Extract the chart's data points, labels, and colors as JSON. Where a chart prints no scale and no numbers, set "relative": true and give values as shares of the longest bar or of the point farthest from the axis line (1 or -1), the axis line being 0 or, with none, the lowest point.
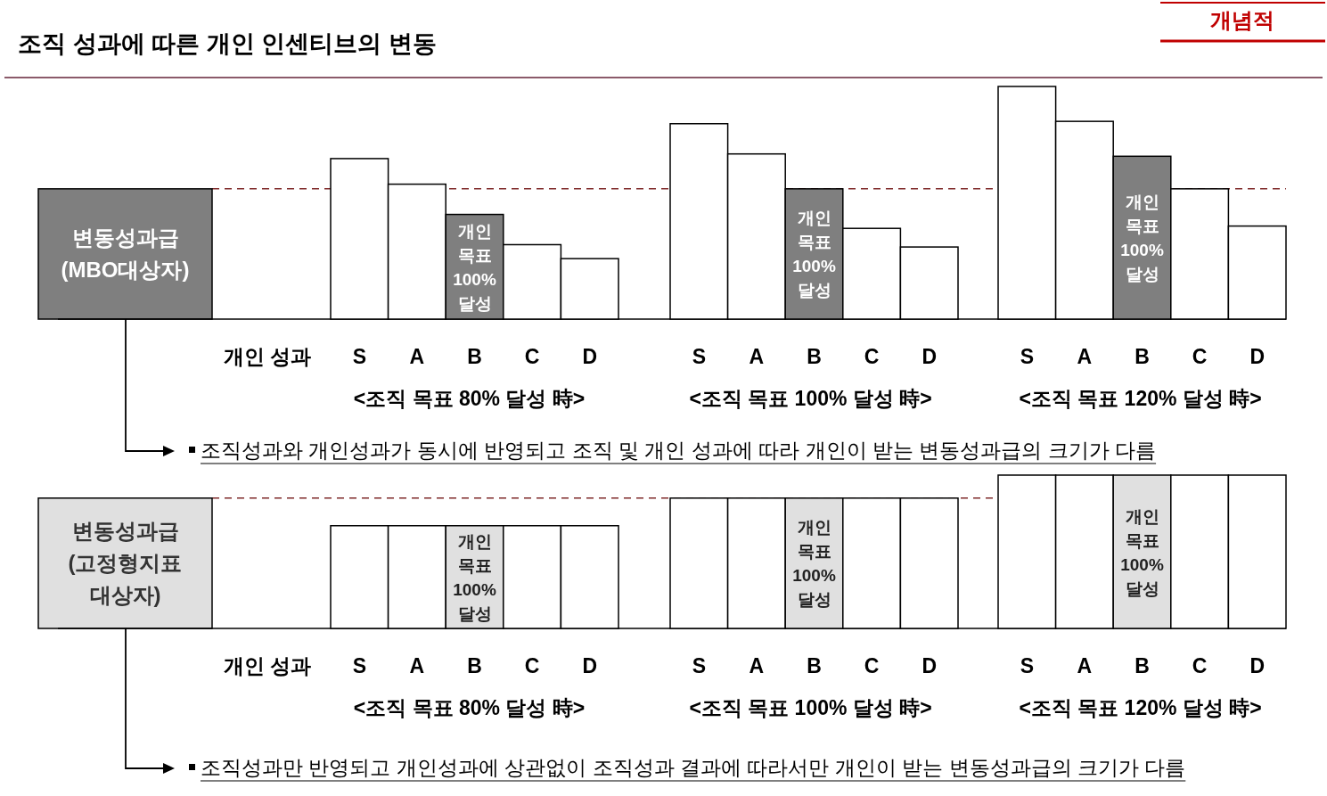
{
  "chart_data": [
    {
      "type": "bar",
      "relative": true,
      "title": "조직 성과에 따른 개인 인센티브의 변동",
      "tick_labels": "x",
      "categories": [
        "S",
        "A",
        "B",
        "C",
        "D",
        "S",
        "A",
        "B",
        "C",
        "D",
        "S",
        "A",
        "B",
        "C",
        "D"
      ],
      "values": [
        0.69,
        0.58,
        0.45,
        0.32,
        0.26,
        0.84,
        0.71,
        0.56,
        0.39,
        0.31,
        1,
        0.85,
        0.7,
        0.56,
        0.4
      ],
      "colors": [
        "#ffffff",
        "#ffffff",
        "#7f7f7f",
        "#ffffff",
        "#ffffff",
        "#ffffff",
        "#ffffff",
        "#7f7f7f",
        "#ffffff",
        "#ffffff",
        "#ffffff",
        "#ffffff",
        "#7f7f7f",
        "#ffffff",
        "#ffffff"
      ],
      "ref_lines": [
        {
          "axis": "y",
          "value": 0.56,
          "color": "#7f2a2a",
          "line_style": "dashed"
        }
      ],
      "annotations": [
        "변동성과급\n(MBO대상자)",
        "개인 성과",
        "<조직 목표 80% 달성 時>",
        "<조직 목표 100% 달성 時>",
        "<조직 목표 120% 달성 時>",
        "조직성과와 개인성과가 동시에 반영되고 조직 및 개인 성과에 따라 개인이 받는 변동성과급의 크기가 다름",
        "개념적",
        "개인\n목표\n100%\n달성",
        "개인\n목표\n100%\n달성",
        "개인\n목표\n100%\n달성"
      ]
    },
    {
      "type": "bar",
      "relative": true,
      "tick_labels": "x",
      "categories": [
        "S",
        "A",
        "B",
        "C",
        "D",
        "S",
        "A",
        "B",
        "C",
        "D",
        "S",
        "A",
        "B",
        "C",
        "D"
      ],
      "values": [
        0.67,
        0.67,
        0.67,
        0.67,
        0.67,
        0.85,
        0.85,
        0.85,
        0.85,
        0.85,
        1,
        1,
        1,
        1,
        1
      ],
      "colors": [
        "#ffffff",
        "#ffffff",
        "#e0e0e0",
        "#ffffff",
        "#ffffff",
        "#ffffff",
        "#ffffff",
        "#e0e0e0",
        "#ffffff",
        "#ffffff",
        "#ffffff",
        "#ffffff",
        "#e0e0e0",
        "#ffffff",
        "#ffffff"
      ],
      "ref_lines": [
        {
          "axis": "y",
          "value": 0.85,
          "color": "#7f2a2a",
          "line_style": "dashed"
        }
      ],
      "annotations": [
        "변동성과급\n(고정형지표\n대상자)",
        "개인 성과",
        "<조직 목표 80% 달성 時>",
        "<조직 목표 100% 달성 時>",
        "<조직 목표 120% 달성 時>",
        "조직성과만 반영되고 개인성과에 상관없이 조직성과 결과에 따라서만 개인이 받는 변동성과급의 크기가 다름",
        null,
        "개인\n목표\n100%\n달성",
        "개인\n목표\n100%\n달성",
        "개인\n목표\n100%\n달성"
      ]
    }
  ]
}
